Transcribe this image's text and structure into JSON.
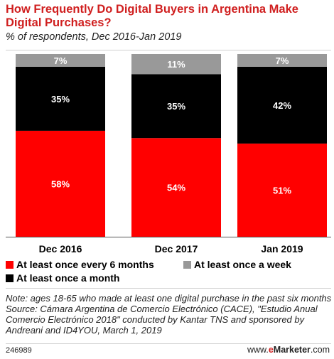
{
  "chart_data": {
    "type": "bar",
    "stacked": true,
    "title": "How Frequently Do Digital Buyers in Argentina Make Digital Purchases?",
    "subtitle": "% of respondents, Dec 2016-Jan 2019",
    "categories": [
      "Dec 2016",
      "Dec 2017",
      "Jan 2019"
    ],
    "series": [
      {
        "name": "At least once every 6 months",
        "color": "#ff0000",
        "values": [
          58,
          54,
          51
        ],
        "labels": [
          "58%",
          "54%",
          "51%"
        ]
      },
      {
        "name": "At least once a month",
        "color": "#000000",
        "values": [
          35,
          35,
          42
        ],
        "labels": [
          "35%",
          "35%",
          "42%"
        ]
      },
      {
        "name": "At least once a week",
        "color": "#999999",
        "values": [
          7,
          11,
          7
        ],
        "labels": [
          "7%",
          "11%",
          "7%"
        ]
      }
    ],
    "ylim": [
      0,
      100
    ],
    "grid": false,
    "legend_position": "bottom"
  },
  "note": "Note: ages 18-65 who made at least one digital purchase in the past six months",
  "source": "Source: Cámara Argentina de Comercio Electrónico (CACE), \"Estudio Anual Comercio Electrónico 2018\" conducted by Kantar TNS and sponsored by Andreani and ID4YOU, March 1, 2019",
  "footer": {
    "chart_id": "246989",
    "brand_prefix": "www.",
    "brand_e": "e",
    "brand_marketer": "Marketer",
    "brand_suffix": ".com"
  }
}
